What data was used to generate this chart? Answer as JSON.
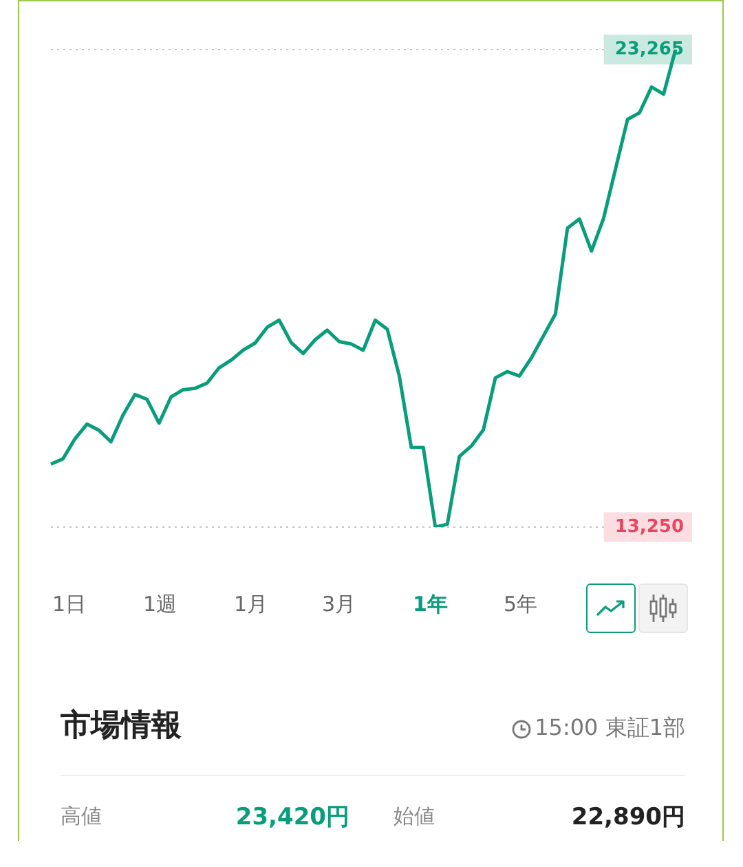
{
  "chart_data": {
    "type": "line",
    "categories": [
      null,
      null,
      null,
      null,
      null,
      null,
      null,
      null,
      null,
      null,
      null,
      null,
      null,
      null,
      null,
      null,
      null,
      null,
      null,
      null,
      null,
      null,
      null,
      null,
      null,
      null,
      null,
      null,
      null,
      null,
      null,
      null,
      null,
      null,
      null,
      null,
      null,
      null,
      null,
      null,
      null,
      null,
      null,
      null,
      null,
      null,
      null,
      null,
      null,
      null,
      null,
      null,
      null
    ],
    "series": [
      {
        "color": "#0a9d7c",
        "values": [
          14570,
          14680,
          15100,
          15410,
          15280,
          15040,
          15600,
          16030,
          15930,
          15430,
          15980,
          16130,
          16160,
          16270,
          16590,
          16750,
          16960,
          17110,
          17440,
          17590,
          17120,
          16890,
          17180,
          17380,
          17140,
          17090,
          16960,
          17590,
          17400,
          16420,
          14920,
          14920,
          13250,
          13310,
          14730,
          14950,
          15290,
          16380,
          16510,
          16420,
          16800,
          17260,
          17720,
          19520,
          19710,
          19040,
          19720,
          20760,
          21800,
          21940,
          22480,
          22330,
          23265
        ]
      }
    ],
    "ylim": [
      13250,
      23265
    ],
    "yticks": [
      {
        "value": 13250,
        "label": "13,250"
      },
      {
        "value": 23265,
        "label": "23,265"
      }
    ],
    "tick_labels": "y",
    "grid": "y",
    "legend": false,
    "marker": "none",
    "line_style": "solid",
    "annotations": [
      "1日",
      "1週",
      "1月",
      "3月",
      "1年",
      "5年",
      "市場情報",
      "15:00 東証1部",
      "高値",
      "23,420円",
      "始値",
      "22,890円"
    ]
  }
}
